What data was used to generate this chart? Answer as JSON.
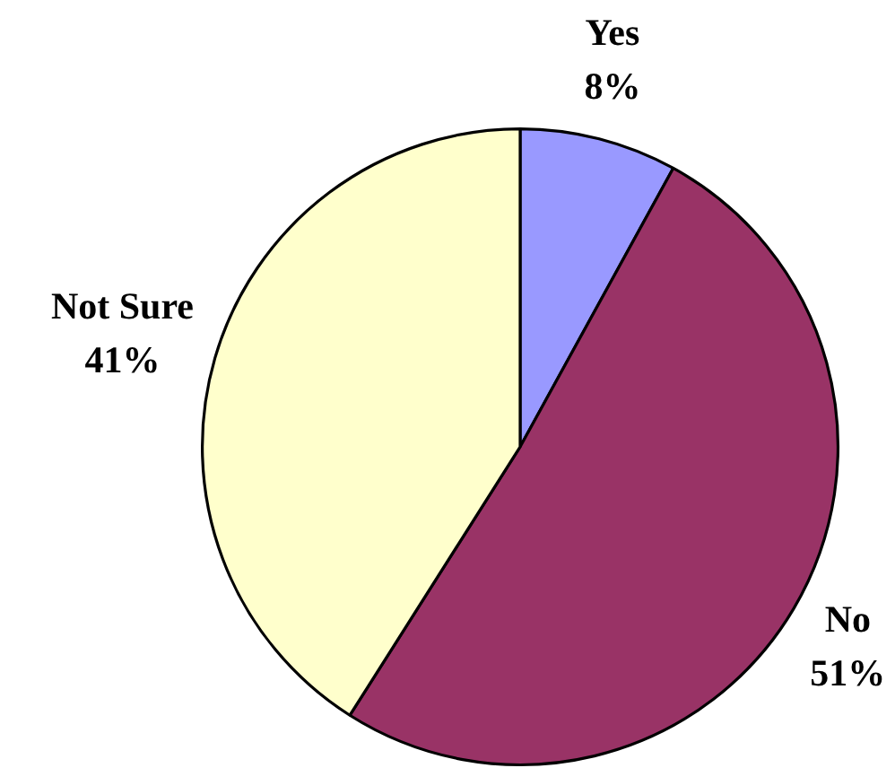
{
  "chart_data": {
    "type": "pie",
    "categories": [
      "Yes",
      "No",
      "Not Sure"
    ],
    "values": [
      8,
      51,
      41
    ],
    "colors": [
      "#9999ff",
      "#993366",
      "#ffffcc"
    ],
    "value_labels": [
      "8%",
      "51%",
      "41%"
    ],
    "legend": false
  }
}
